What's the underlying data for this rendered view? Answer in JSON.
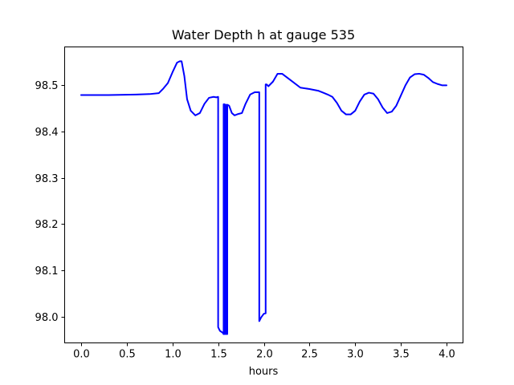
{
  "chart_data": {
    "type": "line",
    "title": "Water Depth h at gauge 535",
    "xlabel": "hours",
    "ylabel": "",
    "xlim": [
      -0.18,
      4.18
    ],
    "ylim": [
      97.943,
      98.583
    ],
    "xticks": [
      0.0,
      0.5,
      1.0,
      1.5,
      2.0,
      2.5,
      3.0,
      3.5,
      4.0
    ],
    "xtick_labels": [
      "0.0",
      "0.5",
      "1.0",
      "1.5",
      "2.0",
      "2.5",
      "3.0",
      "3.5",
      "4.0"
    ],
    "yticks": [
      98.0,
      98.1,
      98.2,
      98.3,
      98.4,
      98.5
    ],
    "ytick_labels": [
      "98.0",
      "98.1",
      "98.2",
      "98.3",
      "98.4",
      "98.5"
    ],
    "grid": false,
    "color": "#0000ff",
    "series": [
      {
        "x": [
          0.0,
          0.3,
          0.6,
          0.75,
          0.85,
          0.9,
          0.95,
          1.0,
          1.05,
          1.08,
          1.1,
          1.13,
          1.16,
          1.2,
          1.25,
          1.3,
          1.35,
          1.4,
          1.45,
          1.48,
          1.5,
          1.5,
          1.52,
          1.55,
          1.56,
          1.56,
          1.57,
          1.57,
          1.58,
          1.58,
          1.59,
          1.59,
          1.6,
          1.6,
          1.62,
          1.65,
          1.68,
          1.72,
          1.76,
          1.8,
          1.85,
          1.9,
          1.94,
          1.95,
          1.95,
          1.97,
          2.0,
          2.02,
          2.02,
          2.03,
          2.05,
          2.1,
          2.15,
          2.2,
          2.3,
          2.4,
          2.5,
          2.6,
          2.65,
          2.7,
          2.75,
          2.8,
          2.85,
          2.9,
          2.95,
          3.0,
          3.05,
          3.1,
          3.15,
          3.2,
          3.25,
          3.3,
          3.35,
          3.4,
          3.45,
          3.5,
          3.55,
          3.6,
          3.65,
          3.7,
          3.75,
          3.8,
          3.85,
          3.9,
          3.95,
          4.0
        ],
        "y": [
          98.479,
          98.479,
          98.48,
          98.481,
          98.483,
          98.493,
          98.505,
          98.528,
          98.549,
          98.552,
          98.552,
          98.52,
          98.47,
          98.445,
          98.435,
          98.44,
          98.46,
          98.473,
          98.475,
          98.474,
          98.475,
          97.977,
          97.969,
          97.965,
          97.962,
          98.459,
          98.459,
          97.962,
          97.962,
          98.458,
          98.458,
          97.962,
          97.962,
          98.458,
          98.456,
          98.44,
          98.435,
          98.438,
          98.44,
          98.46,
          98.48,
          98.485,
          98.485,
          98.485,
          97.99,
          97.998,
          98.006,
          98.007,
          98.502,
          98.502,
          98.498,
          98.508,
          98.525,
          98.525,
          98.51,
          98.495,
          98.492,
          98.488,
          98.484,
          98.48,
          98.475,
          98.462,
          98.445,
          98.437,
          98.437,
          98.445,
          98.465,
          98.48,
          98.484,
          98.482,
          98.47,
          98.452,
          98.44,
          98.443,
          98.456,
          98.478,
          98.5,
          98.517,
          98.524,
          98.525,
          98.523,
          98.516,
          98.507,
          98.503,
          98.5,
          98.5
        ]
      }
    ]
  }
}
